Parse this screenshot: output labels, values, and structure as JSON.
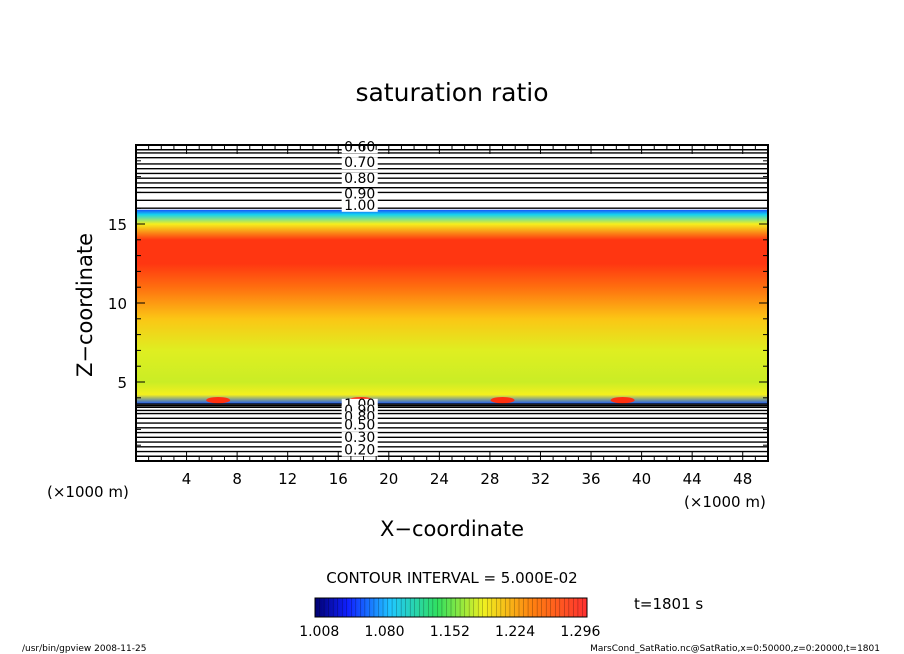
{
  "chart_data": {
    "type": "heatmap",
    "title": "saturation ratio",
    "xlabel": "X−coordinate",
    "ylabel": "Z−coordinate",
    "x_unit_left": "(×1000 m)",
    "x_unit_right": "(×1000 m)",
    "xlim": [
      0,
      50
    ],
    "ylim": [
      0,
      20
    ],
    "x_ticks": [
      "4",
      "8",
      "12",
      "16",
      "20",
      "24",
      "28",
      "32",
      "36",
      "40",
      "44",
      "48"
    ],
    "y_ticks": [
      "5",
      "10",
      "15"
    ],
    "x_tick_values": [
      4,
      8,
      12,
      16,
      20,
      24,
      28,
      32,
      36,
      40,
      44,
      48
    ],
    "y_tick_values": [
      5,
      10,
      15
    ],
    "contour_interval_text": "CONTOUR INTERVAL = 5.000E-02",
    "time_label": "t=1801 s",
    "colorbar_ticks": [
      "1.008",
      "1.080",
      "1.152",
      "1.224",
      "1.296"
    ],
    "colorbar_range": [
      1.0,
      1.3
    ],
    "upper_contour_labels": [
      "0.60",
      "0.70",
      "0.80",
      "0.90",
      "1.00"
    ],
    "lower_contour_labels": [
      "1.00",
      "0.90",
      "0.80",
      "0.50",
      "0.30",
      "0.20"
    ],
    "vertical_profile": [
      {
        "z": 3.6,
        "value": 1.01
      },
      {
        "z": 4.2,
        "value": 1.15
      },
      {
        "z": 5.0,
        "value": 1.13
      },
      {
        "z": 7.0,
        "value": 1.14
      },
      {
        "z": 9.0,
        "value": 1.18
      },
      {
        "z": 11.0,
        "value": 1.23
      },
      {
        "z": 12.5,
        "value": 1.27
      },
      {
        "z": 14.0,
        "value": 1.27
      },
      {
        "z": 15.0,
        "value": 1.15
      },
      {
        "z": 15.6,
        "value": 1.04
      },
      {
        "z": 15.9,
        "value": 1.01
      }
    ],
    "upper_contour_z": [
      16.0,
      16.5,
      17.0,
      17.3,
      17.6,
      17.9,
      18.2,
      18.5,
      18.8,
      19.2,
      19.5,
      19.7
    ],
    "lower_contour_z": [
      0.3,
      0.6,
      0.9,
      1.2,
      1.5,
      1.8,
      2.1,
      2.4,
      2.7,
      3.0,
      3.2,
      3.4,
      3.5,
      3.6
    ],
    "grid": false,
    "legend": "bottom-center colorbar"
  },
  "footer": {
    "left": "/usr/bin/gpview   2008-11-25",
    "right": "MarsCond_SatRatio.nc@SatRatio,x=0:50000,z=0:20000,t=1801"
  },
  "colors": {
    "blue": "#1030ff",
    "cyan": "#18d8f0",
    "green": "#70e040",
    "yellow": "#f0f020",
    "orange": "#ff9a10",
    "red": "#ff2010"
  }
}
